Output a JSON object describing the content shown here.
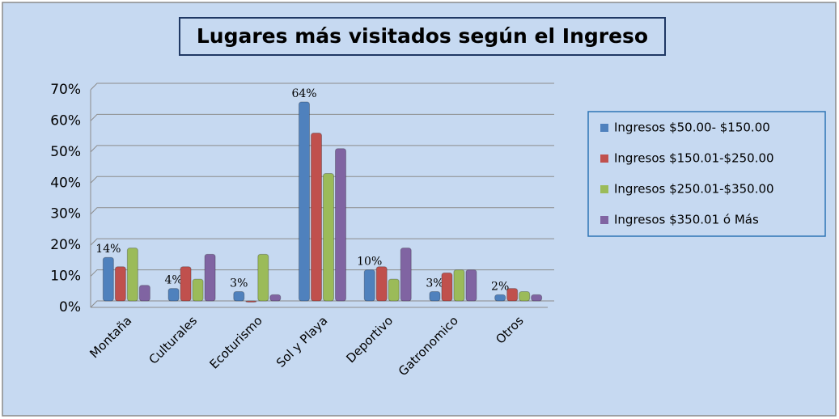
{
  "chart_data": {
    "type": "bar",
    "title": "Lugares más visitados según el Ingreso",
    "categories": [
      "Montaña",
      "Culturales",
      "Ecoturismo",
      "Sol y Playa",
      "Deportivo",
      "Gatronomico",
      "Otros"
    ],
    "series": [
      {
        "name": "Ingresos $50.00- $150.00",
        "color": "#4f81bd",
        "values": [
          14,
          4,
          3,
          64,
          10,
          3,
          2
        ],
        "value_labels": [
          "14%",
          "4%",
          "3%",
          "64%",
          "10%",
          "3%",
          "2%"
        ]
      },
      {
        "name": "Ingresos $150.01-$250.00",
        "color": "#c0504d",
        "values": [
          11,
          11,
          0,
          54,
          11,
          9,
          4
        ]
      },
      {
        "name": "Ingresos $250.01-$350.00",
        "color": "#9bbb59",
        "values": [
          17,
          7,
          15,
          41,
          7,
          10,
          3
        ]
      },
      {
        "name": "Ingresos $350.01 ó Más",
        "color": "#8064a2",
        "values": [
          5,
          15,
          2,
          49,
          17,
          10,
          2
        ]
      }
    ],
    "ylim": [
      0,
      70
    ],
    "yticks": [
      {
        "value": 0,
        "label": "0%"
      },
      {
        "value": 10,
        "label": "10%"
      },
      {
        "value": 20,
        "label": "20%"
      },
      {
        "value": 30,
        "label": "30%"
      },
      {
        "value": 40,
        "label": "40%"
      },
      {
        "value": 50,
        "label": "50%"
      },
      {
        "value": 60,
        "label": "60%"
      },
      {
        "value": 70,
        "label": "70%"
      }
    ],
    "grid": true,
    "legend": "right"
  }
}
